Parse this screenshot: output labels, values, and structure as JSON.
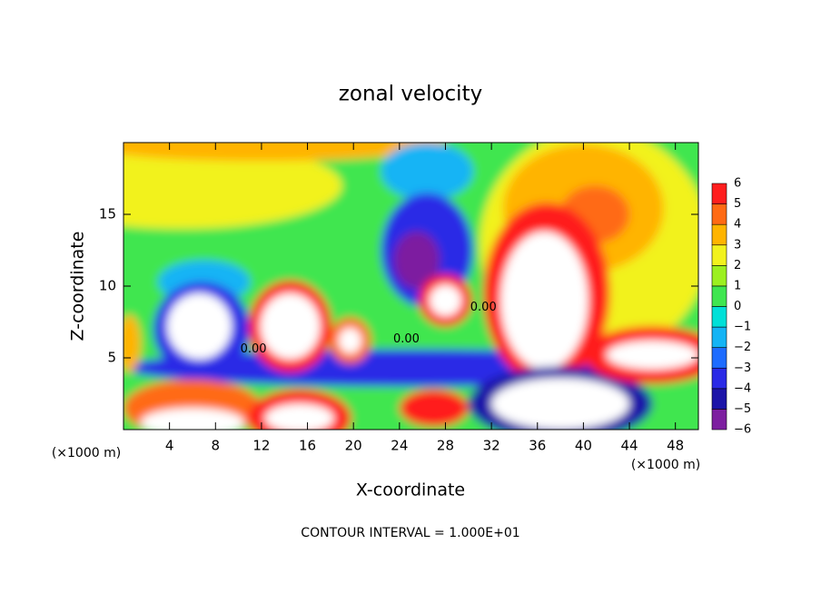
{
  "chart_data": {
    "type": "contour",
    "title": "zonal velocity",
    "x_label": "X-coordinate",
    "y_label": "Z-coordinate",
    "x_unit": "(×1000 m)",
    "x_unit_right": "(×1000 m)",
    "note": "CONTOUR INTERVAL = 1.000E+01",
    "xlim": [
      0,
      50
    ],
    "ylim": [
      0,
      20
    ],
    "xticks": [
      4,
      8,
      12,
      16,
      20,
      24,
      28,
      32,
      36,
      40,
      44,
      48
    ],
    "yticks": [
      5,
      10,
      15
    ],
    "levels": [
      {
        "value": -6,
        "label": "−6"
      },
      {
        "value": -5,
        "label": "−5"
      },
      {
        "value": -4,
        "label": "−4"
      },
      {
        "value": -3,
        "label": "−3"
      },
      {
        "value": -2,
        "label": "−2"
      },
      {
        "value": -1,
        "label": "−1"
      },
      0,
      1,
      2,
      3,
      4,
      5,
      6
    ],
    "colors": [
      "#7d1fa0",
      "#1c14a8",
      "#2a2ae6",
      "#1e6cff",
      "#14b4f5",
      "#00e0d8",
      "#3fe650",
      "#9cf020",
      "#f2f21e",
      "#ffb400",
      "#ff6a14",
      "#ff1e1e",
      "#ff8c96"
    ],
    "background": 0.5,
    "regions": [
      {
        "x": 5,
        "z": 17,
        "rx": 14,
        "rz": 3,
        "value": 2
      },
      {
        "x": 12,
        "z": 20,
        "rx": 16,
        "rz": 1.3,
        "value": 3
      },
      {
        "x": 41,
        "z": 13,
        "rx": 10,
        "rz": 8,
        "value": 2
      },
      {
        "x": 40,
        "z": 15.4,
        "rx": 7,
        "rz": 4.5,
        "value": 3.5
      },
      {
        "x": 41,
        "z": 15,
        "rx": 3,
        "rz": 2,
        "value": 4.5
      },
      {
        "x": 26.4,
        "z": 18,
        "rx": 4,
        "rz": 2,
        "value": -1.5
      },
      {
        "x": 7,
        "z": 10.3,
        "rx": 4,
        "rz": 1.5,
        "value": -1.5
      },
      {
        "x": 25,
        "z": 4.3,
        "rx": 25,
        "rz": 1.3,
        "value": -4
      },
      {
        "x": 26.4,
        "z": 12.5,
        "rx": 4,
        "rz": 4,
        "value": -3.5
      },
      {
        "x": 25.5,
        "z": 11.8,
        "rx": 2,
        "rz": 2,
        "value": -5.5
      },
      {
        "x": 28,
        "z": 9,
        "rx": 2.3,
        "rz": 1.8,
        "value": 5
      },
      {
        "x": 28,
        "z": 9,
        "rx": 1.4,
        "rz": 1.1,
        "value": 8
      },
      {
        "x": 36.8,
        "z": 9.5,
        "rx": 5.5,
        "rz": 6.3,
        "value": 5
      },
      {
        "x": 36.6,
        "z": 9,
        "rx": 3.8,
        "rz": 4.8,
        "value": 8
      },
      {
        "x": 6.8,
        "z": 7,
        "rx": 4.2,
        "rz": 3.3,
        "value": -4
      },
      {
        "x": 6.6,
        "z": 7.2,
        "rx": 2.8,
        "rz": 2.3,
        "value": -8
      },
      {
        "x": 14.5,
        "z": 7.2,
        "rx": 3.6,
        "rz": 3.2,
        "value": 5
      },
      {
        "x": 14.5,
        "z": 7.2,
        "rx": 2.6,
        "rz": 2.3,
        "value": 8
      },
      {
        "x": 19.7,
        "z": 6.2,
        "rx": 1.8,
        "rz": 1.6,
        "value": 4.5
      },
      {
        "x": 19.7,
        "z": 6.2,
        "rx": 1,
        "rz": 0.9,
        "value": -6.5
      },
      {
        "x": 0.5,
        "z": 6,
        "rx": 1,
        "rz": 2,
        "value": 3.5
      },
      {
        "x": 6,
        "z": 1.5,
        "rx": 6,
        "rz": 2,
        "value": 4.5
      },
      {
        "x": 6,
        "z": 0.5,
        "rx": 4.5,
        "rz": 1,
        "value": 8
      },
      {
        "x": 15.3,
        "z": 0.8,
        "rx": 4.5,
        "rz": 2,
        "value": 5
      },
      {
        "x": 15.3,
        "z": 0.8,
        "rx": 3,
        "rz": 1,
        "value": 8
      },
      {
        "x": 27,
        "z": 1.5,
        "rx": 3,
        "rz": 1.3,
        "value": 5
      },
      {
        "x": 38,
        "z": 1.8,
        "rx": 8,
        "rz": 2.6,
        "value": -5
      },
      {
        "x": 38,
        "z": 1.8,
        "rx": 6,
        "rz": 1.8,
        "value": -8
      },
      {
        "x": 46,
        "z": 5.2,
        "rx": 6,
        "rz": 2,
        "value": 5
      },
      {
        "x": 46,
        "z": 5.2,
        "rx": 4,
        "rz": 1,
        "value": 8
      }
    ],
    "contour_labels": [
      {
        "text": "0.00",
        "x": 11.3,
        "z": 5.6
      },
      {
        "text": "0.00",
        "x": 24.6,
        "z": 6.3
      },
      {
        "text": "0.00",
        "x": 31.3,
        "z": 8.5
      }
    ]
  }
}
